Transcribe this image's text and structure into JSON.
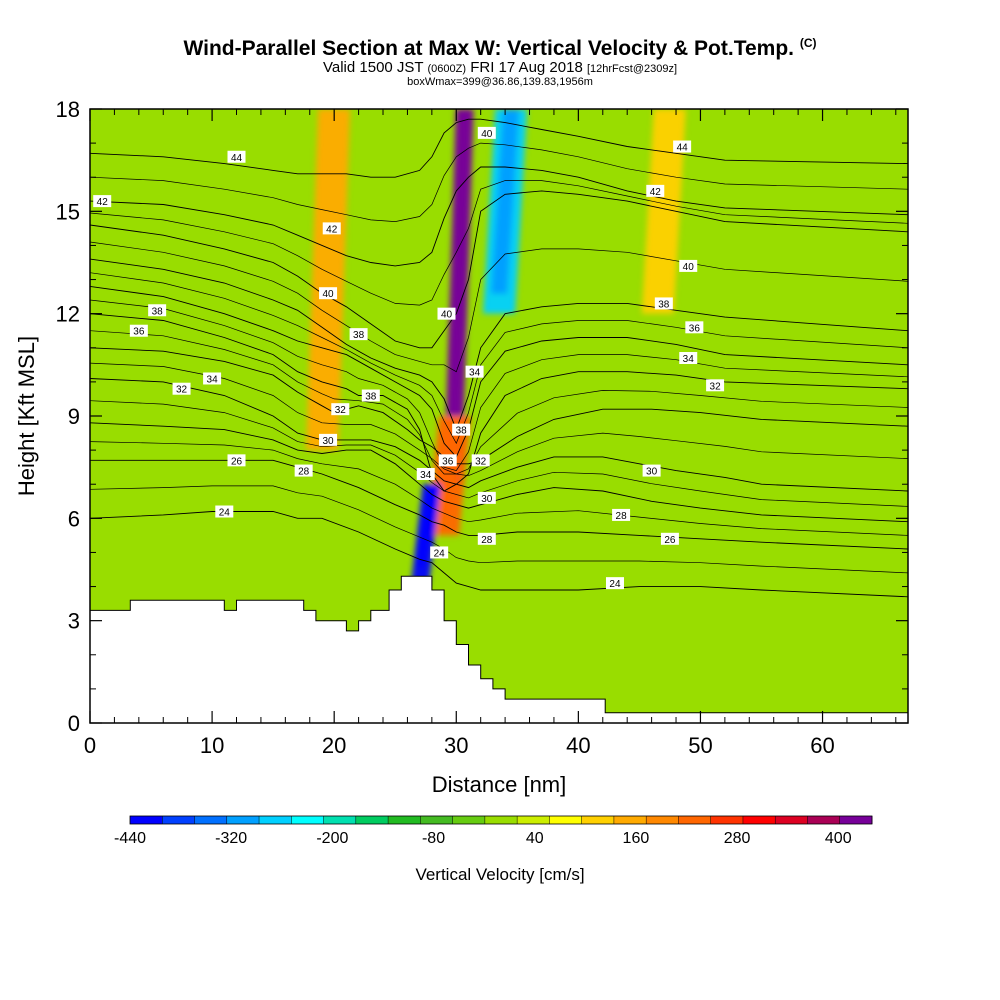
{
  "header": {
    "title": "Wind-Parallel Section at Max W: Vertical Velocity & Pot.Temp.",
    "copyright_mark": "(C)",
    "subtitle_main": "Valid 1500 JST",
    "subtitle_z": "(0600Z)",
    "subtitle_date": "FRI 17 Aug 2018",
    "subtitle_fcst": "[12hrFcst@2309z]",
    "info": "boxWmax=399@36.86,139.83,1956m"
  },
  "chart_data": {
    "type": "heatmap",
    "title": "Wind-Parallel Section at Max W: Vertical Velocity & Pot.Temp.",
    "xlabel": "Distance [nm]",
    "ylabel": "Height [Kft MSL]",
    "xlim": [
      0,
      67
    ],
    "ylim": [
      0,
      18
    ],
    "xticks": [
      0,
      10,
      20,
      30,
      40,
      50,
      60
    ],
    "yticks": [
      0,
      3,
      6,
      9,
      12,
      15,
      18
    ],
    "colorbar": {
      "label": "Vertical Velocity [cm/s]",
      "tick_labels": [
        "-440",
        "-320",
        "-200",
        "-80",
        "40",
        "160",
        "280",
        "400"
      ],
      "levels": [
        -440,
        -400,
        -360,
        -320,
        -280,
        -240,
        -200,
        -160,
        -120,
        -80,
        -40,
        0,
        40,
        80,
        120,
        160,
        200,
        240,
        280,
        320,
        360,
        400,
        440
      ],
      "colors": [
        "#0000ff",
        "#0040ff",
        "#0070ff",
        "#00a0ff",
        "#00d0ff",
        "#00ffff",
        "#00e0b0",
        "#00cc60",
        "#22bb22",
        "#44bb22",
        "#66cc11",
        "#99dd00",
        "#ccee00",
        "#ffff00",
        "#ffd000",
        "#ffaa00",
        "#ff8800",
        "#ff6600",
        "#ff3300",
        "#ff0000",
        "#dd0022",
        "#aa0055",
        "#770099"
      ]
    },
    "velocity_features": [
      {
        "name": "core updraft",
        "x": 30.2,
        "y_bottom": 7,
        "y_top": 18,
        "w": 440
      },
      {
        "name": "updraft lower",
        "x": 29.4,
        "y_bottom": 5.5,
        "y_top": 9,
        "w": 240
      },
      {
        "name": "west band",
        "x": 19.5,
        "y_bottom": 8,
        "y_top": 18,
        "w": 180
      },
      {
        "name": "downdraft lee",
        "x": 27.5,
        "y_bottom": 4,
        "y_top": 7,
        "w": -440
      },
      {
        "name": "downdraft upper",
        "x": 34,
        "y_bottom": 12,
        "y_top": 18,
        "w": -280
      },
      {
        "name": "east band",
        "x": 47,
        "y_bottom": 12,
        "y_top": 18,
        "w": 140
      }
    ],
    "terrain_kft": {
      "x": [
        0,
        3.3,
        3.3,
        11,
        11,
        12,
        12,
        17.5,
        17.5,
        18.5,
        18.5,
        21,
        21,
        22,
        22,
        23,
        23,
        24.5,
        24.5,
        25.5,
        25.5,
        28,
        28,
        29,
        29,
        30,
        30,
        31,
        31,
        32,
        32,
        33,
        33,
        34,
        34,
        38,
        38,
        42.2,
        42.2,
        67
      ],
      "y": [
        3.3,
        3.3,
        3.6,
        3.6,
        3.3,
        3.3,
        3.6,
        3.6,
        3.3,
        3.3,
        3.0,
        3.0,
        2.7,
        2.7,
        3.0,
        3.0,
        3.3,
        3.3,
        3.9,
        3.9,
        4.3,
        4.3,
        3.9,
        3.9,
        3.0,
        3.0,
        2.3,
        2.3,
        1.7,
        1.7,
        1.3,
        1.3,
        1.0,
        1.0,
        0.7,
        0.7,
        0.7,
        0.7,
        0.3,
        0.3
      ]
    },
    "theta_contours": [
      {
        "value": 24,
        "x": [
          0,
          6,
          10,
          15,
          17,
          19,
          22,
          25,
          27,
          28,
          29,
          30,
          31,
          32,
          35,
          40,
          45,
          50,
          55,
          67
        ],
        "y": [
          6.0,
          6.1,
          6.2,
          6.2,
          6.0,
          6.0,
          5.6,
          5.1,
          4.8,
          4.7,
          4.4,
          4.1,
          4.0,
          3.9,
          3.9,
          3.9,
          4.0,
          4.0,
          3.9,
          3.7
        ],
        "label_at": [
          [
            11,
            6.2
          ],
          [
            28.6,
            5.0
          ],
          [
            43,
            4.1
          ]
        ]
      },
      {
        "value": 26,
        "x": [
          0,
          6,
          11,
          15,
          17,
          19,
          22,
          25,
          27,
          28,
          29,
          30,
          31,
          32,
          35,
          40,
          45,
          50,
          55,
          67
        ],
        "y": [
          7.7,
          7.7,
          7.7,
          7.7,
          7.5,
          7.3,
          6.9,
          6.4,
          6.1,
          5.9,
          5.8,
          5.6,
          5.5,
          5.5,
          5.6,
          5.6,
          5.5,
          5.4,
          5.3,
          5.1
        ],
        "label_at": [
          [
            12,
            7.7
          ],
          [
            47.5,
            5.4
          ]
        ]
      },
      {
        "value": 28,
        "x": [
          0,
          6,
          11,
          15,
          17,
          19,
          21,
          23,
          25,
          27,
          28,
          29,
          30,
          31,
          32,
          35,
          38,
          42,
          46,
          50,
          55,
          67
        ],
        "y": [
          8.8,
          8.7,
          8.6,
          8.3,
          8.0,
          7.9,
          8.0,
          8.0,
          7.6,
          7.0,
          6.7,
          6.5,
          6.4,
          6.3,
          6.4,
          6.7,
          6.9,
          6.8,
          6.5,
          6.3,
          6.1,
          5.9
        ],
        "label_at": [
          [
            17.5,
            7.4
          ],
          [
            32.5,
            5.4
          ],
          [
            43.5,
            6.1
          ]
        ]
      },
      {
        "value": 30,
        "x": [
          0,
          6,
          11,
          15,
          17,
          19,
          21,
          23,
          25,
          27,
          28,
          29,
          30,
          31,
          32,
          35,
          38,
          42,
          45,
          48,
          52,
          55,
          67
        ],
        "y": [
          10.1,
          10.0,
          9.6,
          9.0,
          8.5,
          8.3,
          8.3,
          8.3,
          8.1,
          7.7,
          7.4,
          7.1,
          7.0,
          6.9,
          7.1,
          7.5,
          7.8,
          7.8,
          7.6,
          7.4,
          7.2,
          7.0,
          6.8
        ],
        "label_at": [
          [
            19.5,
            8.3
          ],
          [
            32.5,
            6.6
          ],
          [
            46,
            7.4
          ]
        ]
      },
      {
        "value": 32,
        "x": [
          0,
          6,
          11,
          15,
          17,
          19,
          20,
          22,
          24,
          26,
          27,
          28,
          29,
          30,
          31,
          32,
          35,
          38,
          42,
          46,
          50,
          55,
          67
        ],
        "y": [
          11.0,
          10.9,
          10.6,
          10.2,
          9.7,
          9.3,
          9.1,
          9.3,
          9.1,
          8.6,
          8.3,
          8.1,
          7.8,
          7.6,
          7.6,
          7.7,
          8.4,
          8.9,
          9.2,
          9.2,
          9.1,
          8.9,
          8.7
        ],
        "label_at": [
          [
            7.5,
            9.8
          ],
          [
            20.5,
            9.2
          ],
          [
            32,
            7.7
          ],
          [
            51.2,
            9.9
          ]
        ]
      },
      {
        "value": 34,
        "x": [
          0,
          6,
          11,
          15,
          17,
          19,
          21,
          22,
          24,
          26,
          27,
          28,
          29,
          30,
          31,
          32,
          34,
          37,
          40,
          44,
          48,
          52,
          67
        ],
        "y": [
          12.0,
          11.8,
          11.3,
          10.8,
          10.3,
          10.0,
          9.8,
          9.6,
          9.6,
          9.2,
          8.6,
          7.3,
          6.8,
          7.0,
          7.3,
          8.5,
          9.6,
          10.1,
          10.3,
          10.3,
          10.2,
          10.0,
          9.8
        ],
        "label_at": [
          [
            10,
            10.1
          ],
          [
            27.5,
            7.3
          ],
          [
            31.5,
            10.3
          ],
          [
            49,
            10.7
          ]
        ]
      },
      {
        "value": 36,
        "x": [
          0,
          6,
          11,
          15,
          17,
          19,
          21,
          23,
          25,
          27,
          28,
          29,
          30,
          31,
          32,
          34,
          37,
          40,
          44,
          48,
          52,
          67
        ],
        "y": [
          12.8,
          12.5,
          12.0,
          11.5,
          11.2,
          11.0,
          10.8,
          10.4,
          10.0,
          9.6,
          9.2,
          8.2,
          7.8,
          8.6,
          10.0,
          10.9,
          11.2,
          11.3,
          11.3,
          11.1,
          10.8,
          10.5
        ],
        "label_at": [
          [
            4,
            11.5
          ],
          [
            29.3,
            7.7
          ],
          [
            49.5,
            11.6
          ]
        ]
      },
      {
        "value": 38,
        "x": [
          0,
          6,
          11,
          15,
          17,
          19,
          21,
          23,
          25,
          27,
          28,
          29,
          30,
          31,
          32,
          34,
          37,
          40,
          44,
          48,
          52,
          67
        ],
        "y": [
          13.6,
          13.3,
          12.9,
          12.4,
          12.1,
          11.6,
          11.1,
          10.7,
          10.4,
          10.2,
          10.0,
          9.5,
          8.6,
          9.6,
          11.0,
          12.0,
          12.2,
          12.3,
          12.3,
          12.1,
          11.9,
          11.5
        ],
        "label_at": [
          [
            5.5,
            12.1
          ],
          [
            22,
            11.4
          ],
          [
            30.4,
            8.6
          ],
          [
            23,
            9.6
          ],
          [
            47,
            12.3
          ]
        ]
      },
      {
        "value": 40,
        "x": [
          0,
          6,
          11,
          15,
          17,
          19,
          21,
          23,
          25,
          27,
          28,
          29,
          30,
          31,
          32,
          34,
          37,
          40,
          44,
          48,
          52,
          67
        ],
        "y": [
          14.6,
          14.3,
          13.9,
          13.5,
          13.1,
          12.6,
          12.2,
          11.7,
          11.2,
          11.0,
          11.0,
          11.5,
          12.0,
          13.0,
          15.0,
          15.5,
          15.6,
          15.5,
          15.3,
          15.0,
          14.7,
          14.4
        ],
        "label_at": [
          [
            19.5,
            12.6
          ],
          [
            29.2,
            12.0
          ],
          [
            32.5,
            17.3
          ],
          [
            49,
            13.4
          ]
        ]
      },
      {
        "value": 42,
        "x": [
          0,
          6,
          11,
          15,
          17,
          19,
          21,
          23,
          25,
          27,
          28,
          29,
          30,
          31,
          32,
          34,
          37,
          40,
          44,
          48,
          52,
          67
        ],
        "y": [
          15.3,
          15.2,
          14.9,
          14.6,
          14.3,
          14.0,
          13.7,
          13.5,
          13.4,
          13.5,
          13.8,
          14.8,
          15.6,
          16.0,
          16.3,
          16.3,
          16.2,
          16.0,
          15.6,
          15.3,
          15.1,
          14.9
        ],
        "label_at": [
          [
            1,
            15.3
          ],
          [
            19.8,
            14.5
          ],
          [
            46.3,
            15.6
          ]
        ]
      },
      {
        "value": 44,
        "x": [
          0,
          6,
          11,
          15,
          17,
          19,
          21,
          23,
          25,
          27,
          28,
          29,
          30,
          31,
          32,
          34,
          37,
          40,
          44,
          48,
          52,
          67
        ],
        "y": [
          16.7,
          16.6,
          16.4,
          16.2,
          16.1,
          16.1,
          16.1,
          16.0,
          16.0,
          16.2,
          16.6,
          17.3,
          17.6,
          17.7,
          17.7,
          17.6,
          17.4,
          17.2,
          16.9,
          16.7,
          16.5,
          16.4
        ],
        "label_at": [
          [
            12,
            16.6
          ],
          [
            48.5,
            16.9
          ]
        ]
      }
    ],
    "grid": false
  }
}
